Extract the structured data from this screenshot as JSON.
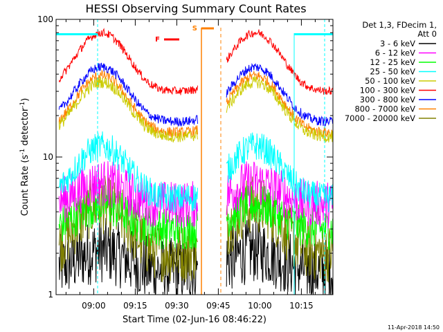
{
  "chart_data": {
    "type": "line",
    "title": "HESSI Observing Summary Count Rates",
    "xlabel": "Start Time (02-Jun-16 08:46:22)",
    "ylabel_main": "Count Rate (s",
    "ylabel_sup": "-1",
    "ylabel_mid": " detector",
    "ylabel_end": ")",
    "yscale": "log",
    "ylim": [
      1,
      100
    ],
    "xlim_minutes": [
      0,
      100
    ],
    "x_ticks": [
      {
        "label": "09:00",
        "minutes": 13.6
      },
      {
        "label": "09:15",
        "minutes": 28.6
      },
      {
        "label": "09:30",
        "minutes": 43.6
      },
      {
        "label": "09:45",
        "minutes": 58.6
      },
      {
        "label": "10:00",
        "minutes": 73.6
      },
      {
        "label": "10:15",
        "minutes": 88.6
      }
    ],
    "y_ticks": [
      {
        "label": "1",
        "value": 1
      },
      {
        "label": "10",
        "value": 10
      },
      {
        "label": "100",
        "value": 100
      }
    ],
    "legend_header_1": "Det 1,3, FDecim 1,",
    "legend_header_2": "Att 0",
    "series": [
      {
        "name": "3 - 6 keV",
        "color": "#000000",
        "base": 1.5,
        "peak": 0.6,
        "noise": 0.55
      },
      {
        "name": "6 - 12 keV",
        "color": "#ff00ff",
        "base": 4.5,
        "peak": 2.0,
        "noise": 0.4
      },
      {
        "name": "12 - 25 keV",
        "color": "#00ff00",
        "base": 3.0,
        "peak": 1.5,
        "noise": 0.35
      },
      {
        "name": "25 - 50 keV",
        "color": "#00ffff",
        "base": 5.0,
        "peak": 7.0,
        "noise": 0.25
      },
      {
        "name": "50 - 100 keV",
        "color": "#cccc00",
        "base": 14.0,
        "peak": 21.0,
        "noise": 0.1
      },
      {
        "name": "100 - 300 keV",
        "color": "#ff0000",
        "base": 30.0,
        "peak": 50.0,
        "noise": 0.07
      },
      {
        "name": "300 - 800 keV",
        "color": "#0000ff",
        "base": 18.0,
        "peak": 27.0,
        "noise": 0.08
      },
      {
        "name": "800 - 7000 keV",
        "color": "#ff8000",
        "base": 15.0,
        "peak": 24.0,
        "noise": 0.09
      },
      {
        "name": "7000 - 20000 keV",
        "color": "#808000",
        "base": 2.0,
        "peak": 2.5,
        "noise": 0.5
      }
    ],
    "gaps_minutes": [
      [
        -2,
        1.0
      ],
      [
        51.2,
        61.5
      ]
    ],
    "peak_minutes": [
      16.5,
      72.0
    ],
    "peak_width_minutes": 11.0,
    "flag_F_label": "F",
    "flag_S_label": "S",
    "cyan_bar_value": 78,
    "cyan_bar_ranges": [
      [
        0,
        15
      ],
      [
        86,
        100
      ]
    ],
    "orange_solid_minutes": 52.5,
    "orange_dashed_minutes": 59.5,
    "cyan_dashed_minutes": [
      15,
      97
    ],
    "cyan_solid_minutes": 86
  },
  "footnote": "11-Apr-2018 14:50"
}
